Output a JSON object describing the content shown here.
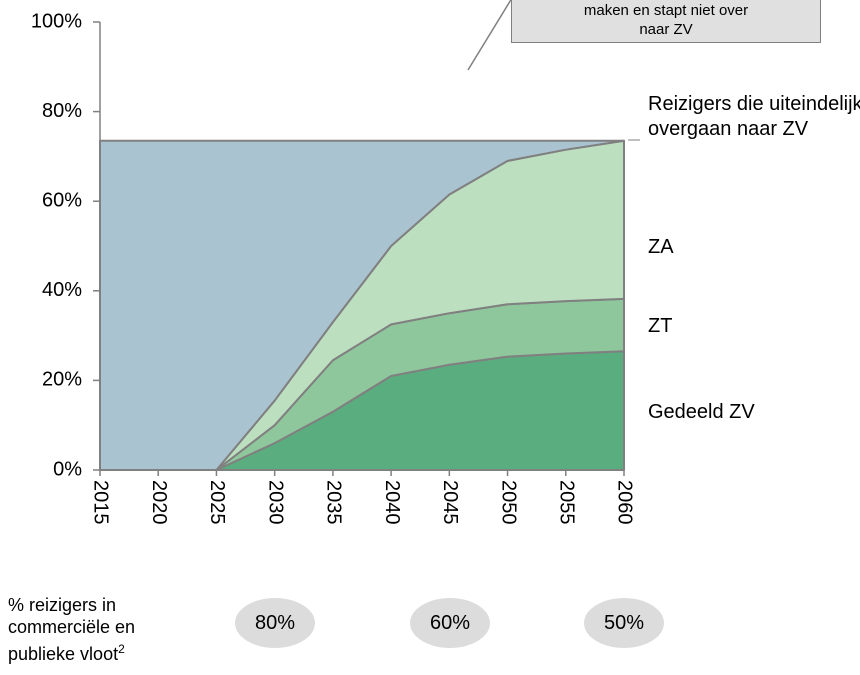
{
  "chart_data": {
    "type": "stacked_area",
    "x": [
      2015,
      2020,
      2025,
      2030,
      2035,
      2040,
      2045,
      2050,
      2055,
      2060
    ],
    "xlim": [
      2015,
      2060
    ],
    "xticks": [
      2015,
      2020,
      2025,
      2030,
      2035,
      2040,
      2045,
      2050,
      2055,
      2060
    ],
    "ylim": [
      0,
      100
    ],
    "yticks": [
      {
        "value": 0,
        "label": "0%"
      },
      {
        "value": 20,
        "label": "20%"
      },
      {
        "value": 40,
        "label": "40%"
      },
      {
        "value": 60,
        "label": "60%"
      },
      {
        "value": 80,
        "label": "80%"
      },
      {
        "value": 100,
        "label": "100%"
      }
    ],
    "series": [
      {
        "name": "Gedeeld ZV",
        "color": "#5aad7e",
        "values": [
          0,
          0,
          0,
          6,
          13,
          21,
          23.5,
          25.3,
          26,
          26.5
        ]
      },
      {
        "name": "ZT",
        "color": "#8fc79d",
        "values": [
          0,
          0,
          0,
          4,
          11.5,
          11.5,
          11.5,
          11.7,
          11.7,
          11.7
        ]
      },
      {
        "name": "ZA",
        "color": "#bcdfc0",
        "values": [
          0,
          0,
          0,
          5.5,
          8.5,
          17.5,
          26.5,
          32,
          33.8,
          35.3
        ]
      },
      {
        "name": "Reizigers die uiteindelijk overgaan naar ZV",
        "color": "#a9c4d0",
        "values": [
          73.5,
          73.5,
          73.5,
          58,
          40.5,
          23.5,
          12,
          4.5,
          2,
          0
        ]
      }
    ],
    "annotation": {
      "lines": [
        "maken en stapt niet over",
        "naar ZV"
      ]
    },
    "footer": {
      "text": "% reizigers in commerciële en publieke vloot",
      "footnote_mark": "2",
      "labels": [
        "80%",
        "60%",
        "50%"
      ]
    }
  }
}
